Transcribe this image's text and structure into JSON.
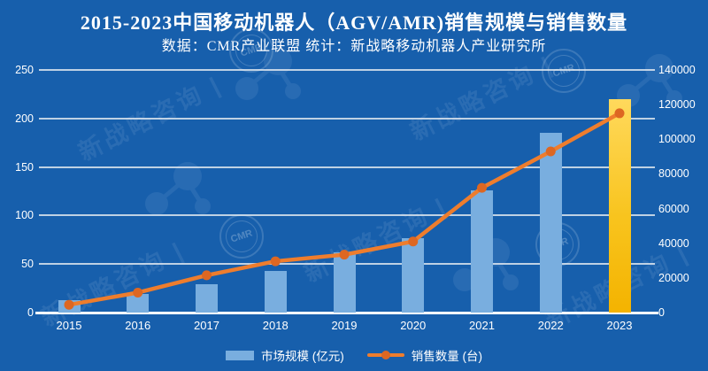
{
  "title": "2015-2023中国移动机器人（AGV/AMR)销售规模与销售数量",
  "subtitle": "数据：CMR产业联盟 统计：新战略移动机器人产业研究所",
  "watermark": {
    "text": "新战略咨询",
    "stamp": "CMR"
  },
  "colors": {
    "background": "#175FAC",
    "bar_blue": "#79AEDF",
    "bar_gold_top": "#FFD95C",
    "bar_gold_bottom": "#F4B300",
    "line_orange": "#EE7D2D",
    "dot_orange": "#DD6722",
    "gridline": "rgba(232,237,243,0.8)",
    "axis_text": "#FFFFFF"
  },
  "legend": {
    "items": [
      {
        "label": "市场规模 (亿元)",
        "type": "bar"
      },
      {
        "label": "销售数量 (台)",
        "type": "line"
      }
    ]
  },
  "chart_data": {
    "type": "combo-bar-line",
    "categories": [
      "2015",
      "2016",
      "2017",
      "2018",
      "2019",
      "2020",
      "2021",
      "2022",
      "2023"
    ],
    "series": [
      {
        "name": "市场规模 (亿元)",
        "type": "bar",
        "axis": "left",
        "values": [
          13,
          19,
          29.5,
          42.5,
          62,
          77,
          126,
          185,
          220
        ],
        "highlight_last": true
      },
      {
        "name": "销售数量 (台)",
        "type": "line",
        "axis": "right",
        "values": [
          4500,
          11500,
          21500,
          29600,
          33400,
          41000,
          72000,
          93000,
          115000
        ]
      }
    ],
    "left_axis": {
      "min": 0,
      "max": 250,
      "step": 50,
      "ticks": [
        0,
        50,
        100,
        150,
        200,
        250
      ]
    },
    "right_axis": {
      "min": 0,
      "max": 140000,
      "step": 20000,
      "ticks": [
        0,
        20000,
        40000,
        60000,
        80000,
        100000,
        120000,
        140000
      ]
    },
    "grid": true,
    "legend_position": "bottom",
    "title": "2015-2023中国移动机器人（AGV/AMR)销售规模与销售数量",
    "subtitle": "数据：CMR产业联盟 统计：新战略移动机器人产业研究所"
  }
}
